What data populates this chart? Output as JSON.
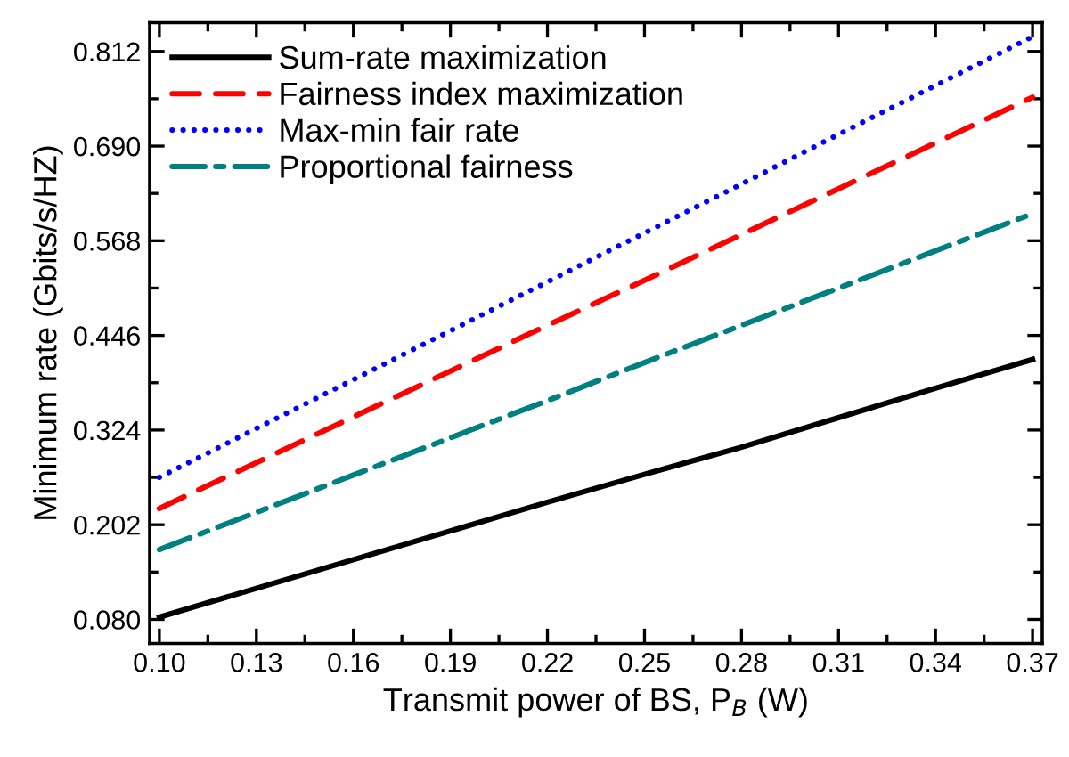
{
  "chart_data": {
    "type": "line",
    "xlabel": "Transmit power of BS, P$_{B}$ (W)",
    "ylabel": "Minimum rate (Gbits/s/HZ)",
    "x": [
      0.1,
      0.13,
      0.16,
      0.19,
      0.22,
      0.25,
      0.28,
      0.31,
      0.34,
      0.37
    ],
    "series": [
      {
        "name": "Sum-rate maximization",
        "color": "#000000",
        "line_style": "solid",
        "values": [
          0.083,
          0.12,
          0.157,
          0.194,
          0.231,
          0.267,
          0.302,
          0.34,
          0.378,
          0.415
        ]
      },
      {
        "name": "Fairness index maximization",
        "color": "#ff0000",
        "line_style": "dashed",
        "values": [
          0.223,
          0.282,
          0.341,
          0.4,
          0.459,
          0.517,
          0.576,
          0.635,
          0.694,
          0.753
        ]
      },
      {
        "name": "Max-min fair rate",
        "color": "#0000ff",
        "line_style": "dotted",
        "values": [
          0.263,
          0.326,
          0.389,
          0.452,
          0.515,
          0.578,
          0.641,
          0.705,
          0.768,
          0.831
        ]
      },
      {
        "name": "Proportional fairness",
        "color": "#008080",
        "line_style": "dashdot",
        "values": [
          0.17,
          0.218,
          0.266,
          0.314,
          0.362,
          0.411,
          0.459,
          0.507,
          0.555,
          0.603
        ]
      }
    ],
    "xlim": [
      0.097,
      0.373
    ],
    "ylim": [
      0.049,
      0.849
    ],
    "xticks": [
      {
        "value": 0.1,
        "label": "0.10"
      },
      0.13,
      0.16,
      0.19,
      0.22,
      0.25,
      0.28,
      0.31,
      0.34,
      0.37
    ],
    "yticks": [
      {
        "value": 0.08,
        "label": "0.080"
      },
      0.202,
      0.324,
      0.446,
      0.568,
      {
        "value": 0.69,
        "label": "0.690"
      },
      0.812
    ],
    "grid": false,
    "legend": "top left"
  }
}
